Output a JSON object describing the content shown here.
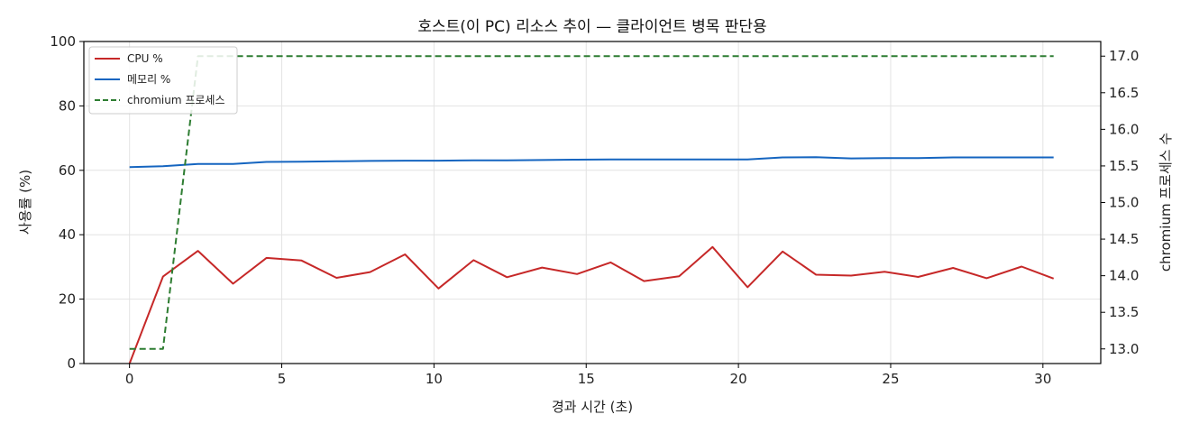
{
  "chart_data": {
    "type": "line",
    "title": "호스트(이 PC) 리소스 추이 — 클라이언트 병목 판단용",
    "xlabel": "경과 시간 (초)",
    "ylabel": "사용률 (%)",
    "y2label": "chromium 프로세스 수",
    "xlim": [
      -1.5,
      31.9
    ],
    "ylim": [
      0,
      100
    ],
    "y2lim": [
      12.8,
      17.2
    ],
    "xticks": [
      "0",
      "5",
      "10",
      "15",
      "20",
      "25",
      "30"
    ],
    "yticks": [
      "0",
      "20",
      "40",
      "60",
      "80",
      "100"
    ],
    "y2ticks": [
      "13.0",
      "13.5",
      "14.0",
      "14.5",
      "15.0",
      "15.5",
      "16.0",
      "16.5",
      "17.0"
    ],
    "grid": true,
    "legend_position": "top-left",
    "x": [
      0.0,
      1.1,
      2.25,
      3.4,
      4.5,
      5.65,
      6.8,
      7.9,
      9.05,
      10.15,
      11.3,
      12.4,
      13.55,
      14.7,
      15.8,
      16.9,
      18.05,
      19.15,
      20.3,
      21.45,
      22.55,
      23.7,
      24.8,
      25.9,
      27.05,
      28.15,
      29.3,
      30.35
    ],
    "series": [
      {
        "name": "CPU %",
        "axis": "left",
        "color": "#c62828",
        "style": "solid",
        "values": [
          0,
          27.0,
          35.0,
          24.8,
          32.8,
          32.0,
          26.6,
          28.4,
          33.9,
          23.3,
          32.1,
          26.8,
          29.8,
          27.8,
          31.4,
          25.6,
          27.1,
          36.2,
          23.7,
          34.8,
          27.6,
          27.3,
          28.5,
          26.9,
          29.7,
          26.5,
          30.1,
          26.4
        ]
      },
      {
        "name": "메모리 %",
        "axis": "left",
        "color": "#1565c0",
        "style": "solid",
        "values": [
          61.0,
          61.3,
          62.0,
          62.0,
          62.6,
          62.7,
          62.8,
          62.9,
          63.0,
          63.0,
          63.1,
          63.1,
          63.2,
          63.3,
          63.4,
          63.4,
          63.4,
          63.4,
          63.4,
          64.0,
          64.1,
          63.7,
          63.8,
          63.8,
          64.0,
          64.0,
          64.0,
          64.0
        ]
      },
      {
        "name": "chromium 프로세스",
        "axis": "right",
        "color": "#2e7d32",
        "style": "dashed",
        "values": [
          13,
          13,
          17,
          17,
          17,
          17,
          17,
          17,
          17,
          17,
          17,
          17,
          17,
          17,
          17,
          17,
          17,
          17,
          17,
          17,
          17,
          17,
          17,
          17,
          17,
          17,
          17,
          17
        ]
      }
    ]
  }
}
